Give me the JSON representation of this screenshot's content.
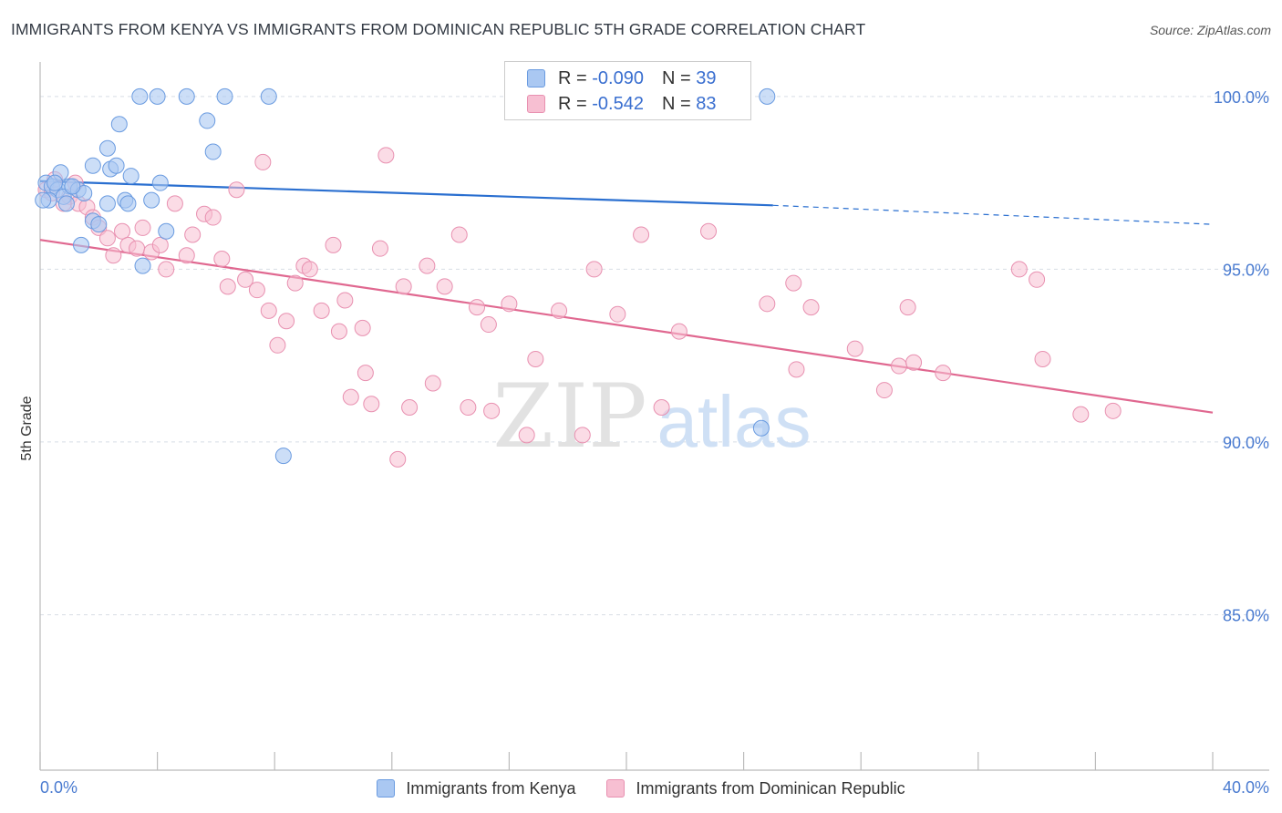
{
  "title": "IMMIGRANTS FROM KENYA VS IMMIGRANTS FROM DOMINICAN REPUBLIC 5TH GRADE CORRELATION CHART",
  "source": "Source: ZipAtlas.com",
  "watermark": {
    "zip": "ZIP",
    "atlas": "atlas"
  },
  "legend": {
    "r_label": "R =",
    "n_label": "N =",
    "kenya": {
      "r": "-0.090",
      "n": "39"
    },
    "dominican": {
      "r": "-0.542",
      "n": "83"
    }
  },
  "colors": {
    "kenya_fill": "#aac8f2",
    "kenya_stroke": "#6a9be0",
    "kenya_line": "#2a6fd0",
    "dom_fill": "#f7bfd2",
    "dom_stroke": "#e890b0",
    "dom_line": "#e06890",
    "grid": "#d8dde5",
    "tick_text": "#4a7bd0"
  },
  "chart_data": {
    "type": "scatter",
    "title": "IMMIGRANTS FROM KENYA VS IMMIGRANTS FROM DOMINICAN REPUBLIC 5TH GRADE CORRELATION CHART",
    "xlabel": "",
    "ylabel": "5th Grade",
    "xlim": [
      0,
      40
    ],
    "ylim": [
      80.5,
      101
    ],
    "x_tick_labels": [
      "0.0%",
      "40.0%"
    ],
    "y_ticks": [
      85,
      90,
      95,
      100
    ],
    "y_tick_labels": [
      "85.0%",
      "90.0%",
      "95.0%",
      "100.0%"
    ],
    "series": [
      {
        "name": "Immigrants from Kenya",
        "r": -0.09,
        "n": 39,
        "trend": {
          "x0": 0,
          "y0": 97.55,
          "x1": 25,
          "y1": 96.85,
          "dash_x1": 40,
          "dash_y1": 96.3
        },
        "points": [
          {
            "x": 3.4,
            "y": 100
          },
          {
            "x": 4.0,
            "y": 100
          },
          {
            "x": 5.0,
            "y": 100
          },
          {
            "x": 6.3,
            "y": 100
          },
          {
            "x": 7.8,
            "y": 100
          },
          {
            "x": 24.8,
            "y": 100
          },
          {
            "x": 2.7,
            "y": 99.2
          },
          {
            "x": 5.7,
            "y": 99.3
          },
          {
            "x": 2.3,
            "y": 98.5
          },
          {
            "x": 5.9,
            "y": 98.4
          },
          {
            "x": 1.8,
            "y": 98.0
          },
          {
            "x": 2.4,
            "y": 97.9
          },
          {
            "x": 2.6,
            "y": 98.0
          },
          {
            "x": 0.7,
            "y": 97.8
          },
          {
            "x": 3.1,
            "y": 97.7
          },
          {
            "x": 4.1,
            "y": 97.5
          },
          {
            "x": 0.2,
            "y": 97.5
          },
          {
            "x": 0.4,
            "y": 97.4
          },
          {
            "x": 0.6,
            "y": 97.3
          },
          {
            "x": 1.0,
            "y": 97.4
          },
          {
            "x": 1.3,
            "y": 97.3
          },
          {
            "x": 1.5,
            "y": 97.2
          },
          {
            "x": 0.8,
            "y": 97.1
          },
          {
            "x": 0.3,
            "y": 97.0
          },
          {
            "x": 2.3,
            "y": 96.9
          },
          {
            "x": 2.9,
            "y": 97.0
          },
          {
            "x": 3.0,
            "y": 96.9
          },
          {
            "x": 3.8,
            "y": 97.0
          },
          {
            "x": 0.9,
            "y": 96.9
          },
          {
            "x": 1.8,
            "y": 96.4
          },
          {
            "x": 2.0,
            "y": 96.3
          },
          {
            "x": 4.3,
            "y": 96.1
          },
          {
            "x": 1.4,
            "y": 95.7
          },
          {
            "x": 3.5,
            "y": 95.1
          },
          {
            "x": 24.6,
            "y": 90.4
          },
          {
            "x": 8.3,
            "y": 89.6
          },
          {
            "x": 0.1,
            "y": 97.0
          },
          {
            "x": 1.1,
            "y": 97.4
          },
          {
            "x": 0.5,
            "y": 97.5
          }
        ]
      },
      {
        "name": "Immigrants from Dominican Republic",
        "r": -0.542,
        "n": 83,
        "trend": {
          "x0": 0,
          "y0": 95.85,
          "x1": 40,
          "y1": 90.85
        },
        "points": [
          {
            "x": 0.2,
            "y": 97.3
          },
          {
            "x": 0.4,
            "y": 97.2
          },
          {
            "x": 0.5,
            "y": 97.6
          },
          {
            "x": 1.0,
            "y": 97.1
          },
          {
            "x": 1.2,
            "y": 97.5
          },
          {
            "x": 1.3,
            "y": 96.9
          },
          {
            "x": 1.6,
            "y": 96.8
          },
          {
            "x": 1.8,
            "y": 96.5
          },
          {
            "x": 2.0,
            "y": 96.2
          },
          {
            "x": 2.3,
            "y": 95.9
          },
          {
            "x": 2.5,
            "y": 95.4
          },
          {
            "x": 2.8,
            "y": 96.1
          },
          {
            "x": 3.0,
            "y": 95.7
          },
          {
            "x": 3.3,
            "y": 95.6
          },
          {
            "x": 3.5,
            "y": 96.2
          },
          {
            "x": 3.8,
            "y": 95.5
          },
          {
            "x": 4.1,
            "y": 95.7
          },
          {
            "x": 4.3,
            "y": 95.0
          },
          {
            "x": 4.6,
            "y": 96.9
          },
          {
            "x": 5.0,
            "y": 95.4
          },
          {
            "x": 5.2,
            "y": 96.0
          },
          {
            "x": 5.6,
            "y": 96.6
          },
          {
            "x": 5.9,
            "y": 96.5
          },
          {
            "x": 6.2,
            "y": 95.3
          },
          {
            "x": 6.4,
            "y": 94.5
          },
          {
            "x": 6.7,
            "y": 97.3
          },
          {
            "x": 7.0,
            "y": 94.7
          },
          {
            "x": 7.4,
            "y": 94.4
          },
          {
            "x": 7.6,
            "y": 98.1
          },
          {
            "x": 7.8,
            "y": 93.8
          },
          {
            "x": 8.1,
            "y": 92.8
          },
          {
            "x": 8.4,
            "y": 93.5
          },
          {
            "x": 8.7,
            "y": 94.6
          },
          {
            "x": 9.0,
            "y": 95.1
          },
          {
            "x": 9.2,
            "y": 95.0
          },
          {
            "x": 9.6,
            "y": 93.8
          },
          {
            "x": 10.0,
            "y": 95.7
          },
          {
            "x": 10.2,
            "y": 93.2
          },
          {
            "x": 10.4,
            "y": 94.1
          },
          {
            "x": 10.6,
            "y": 91.3
          },
          {
            "x": 11.0,
            "y": 93.3
          },
          {
            "x": 11.1,
            "y": 92.0
          },
          {
            "x": 11.3,
            "y": 91.1
          },
          {
            "x": 11.6,
            "y": 95.6
          },
          {
            "x": 11.8,
            "y": 98.3
          },
          {
            "x": 12.2,
            "y": 89.5
          },
          {
            "x": 12.4,
            "y": 94.5
          },
          {
            "x": 12.6,
            "y": 91.0
          },
          {
            "x": 13.2,
            "y": 95.1
          },
          {
            "x": 13.4,
            "y": 91.7
          },
          {
            "x": 13.8,
            "y": 94.5
          },
          {
            "x": 14.3,
            "y": 96.0
          },
          {
            "x": 14.6,
            "y": 91.0
          },
          {
            "x": 14.9,
            "y": 93.9
          },
          {
            "x": 15.3,
            "y": 93.4
          },
          {
            "x": 15.4,
            "y": 90.9
          },
          {
            "x": 16.0,
            "y": 94.0
          },
          {
            "x": 16.6,
            "y": 90.2
          },
          {
            "x": 16.9,
            "y": 92.4
          },
          {
            "x": 17.7,
            "y": 93.8
          },
          {
            "x": 18.5,
            "y": 90.2
          },
          {
            "x": 18.9,
            "y": 95.0
          },
          {
            "x": 19.7,
            "y": 93.7
          },
          {
            "x": 20.5,
            "y": 96.0
          },
          {
            "x": 21.2,
            "y": 91.0
          },
          {
            "x": 21.8,
            "y": 93.2
          },
          {
            "x": 22.8,
            "y": 96.1
          },
          {
            "x": 24.8,
            "y": 94.0
          },
          {
            "x": 25.7,
            "y": 94.6
          },
          {
            "x": 25.8,
            "y": 92.1
          },
          {
            "x": 26.3,
            "y": 93.9
          },
          {
            "x": 27.8,
            "y": 92.7
          },
          {
            "x": 28.8,
            "y": 91.5
          },
          {
            "x": 29.3,
            "y": 92.2
          },
          {
            "x": 29.6,
            "y": 93.9
          },
          {
            "x": 29.8,
            "y": 92.3
          },
          {
            "x": 30.8,
            "y": 92.0
          },
          {
            "x": 33.4,
            "y": 95.0
          },
          {
            "x": 34.0,
            "y": 94.7
          },
          {
            "x": 34.2,
            "y": 92.4
          },
          {
            "x": 35.5,
            "y": 90.8
          },
          {
            "x": 36.6,
            "y": 90.9
          },
          {
            "x": 0.8,
            "y": 96.9
          }
        ]
      }
    ]
  }
}
